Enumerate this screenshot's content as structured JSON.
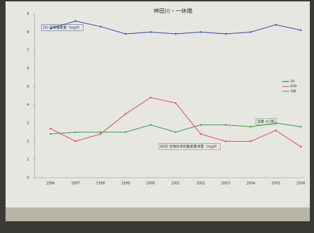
{
  "chart_data": {
    "type": "line",
    "title": "神田川・一休橋",
    "categories": [
      "1996",
      "1997",
      "1998",
      "1999",
      "2000",
      "2001",
      "2002",
      "2003",
      "2004",
      "2005",
      "2006"
    ],
    "series": [
      {
        "name": "DO",
        "color": "#3a44b0",
        "values": [
          8.2,
          8.6,
          8.3,
          7.9,
          8.0,
          7.9,
          8.0,
          7.9,
          8.0,
          8.4,
          8.1
        ]
      },
      {
        "name": "BOD",
        "color": "#e04848",
        "values": [
          2.7,
          2.0,
          2.4,
          3.5,
          4.4,
          4.1,
          2.4,
          2.0,
          2.0,
          2.6,
          1.7
        ]
      },
      {
        "name": "流量",
        "color": "#3a9a4a",
        "values": [
          2.4,
          2.5,
          2.5,
          2.5,
          2.9,
          2.5,
          2.9,
          2.9,
          2.8,
          3.0,
          2.8
        ]
      }
    ],
    "annotations": [
      "DO 溶存酸素量（mg/ℓ）",
      "BOD 生物化学的酸素要求量（mg/ℓ）",
      "流量 m³/秒"
    ],
    "ylim": [
      0,
      9
    ],
    "yticks": [
      0,
      1,
      2,
      3,
      4,
      5,
      6,
      7,
      8,
      9
    ],
    "legend": "right"
  }
}
